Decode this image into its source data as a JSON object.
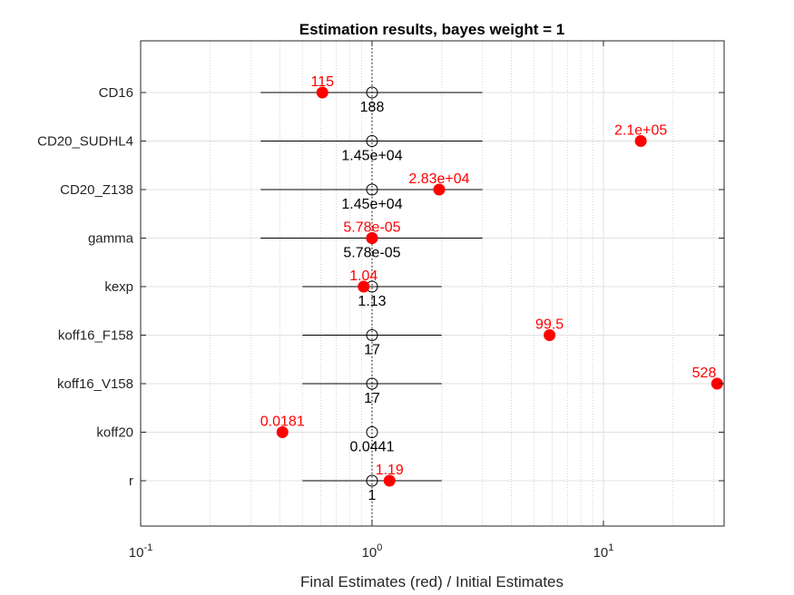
{
  "chart_data": {
    "type": "scatter",
    "title": "Estimation results, bayes weight = 1",
    "xlabel": "Final Estimates (red) / Initial Estimates",
    "ylabel": "",
    "x_scale": "log",
    "xlim": [
      0.1,
      32
    ],
    "x_ticks": [
      {
        "value": 0.1,
        "base": "10",
        "exp": "-1"
      },
      {
        "value": 1,
        "base": "10",
        "exp": "0"
      },
      {
        "value": 10,
        "base": "10",
        "exp": "1"
      }
    ],
    "grid": true,
    "categories": [
      "CD16",
      "CD20_SUDHL4",
      "CD20_Z138",
      "gamma",
      "kexp",
      "koff16_F158",
      "koff16_V158",
      "koff20",
      "r"
    ],
    "series": [
      {
        "name": "Final Estimates",
        "color": "#ff0000",
        "ratio": [
          0.61,
          14.5,
          1.95,
          1.0,
          0.92,
          5.85,
          31.0,
          0.41,
          1.19
        ]
      },
      {
        "name": "Initial Estimates",
        "color": "#000000",
        "ratio": [
          1,
          1,
          1,
          1,
          1,
          1,
          1,
          1,
          1
        ]
      }
    ],
    "interval_low": [
      0.33,
      0.33,
      0.33,
      0.33,
      0.5,
      0.5,
      0.5,
      1,
      0.5
    ],
    "interval_high": [
      3,
      3,
      3,
      3,
      2,
      2,
      2,
      1,
      2
    ],
    "final_labels": [
      "115",
      "2.1e+05",
      "2.83e+04",
      "5.78e-05",
      "1.04",
      "99.5",
      "528",
      "0.0181",
      "1.19"
    ],
    "initial_labels": [
      "188",
      "1.45e+04",
      "1.45e+04",
      "5.78e-05",
      "1.13",
      "17",
      "17",
      "0.0441",
      "1"
    ]
  }
}
